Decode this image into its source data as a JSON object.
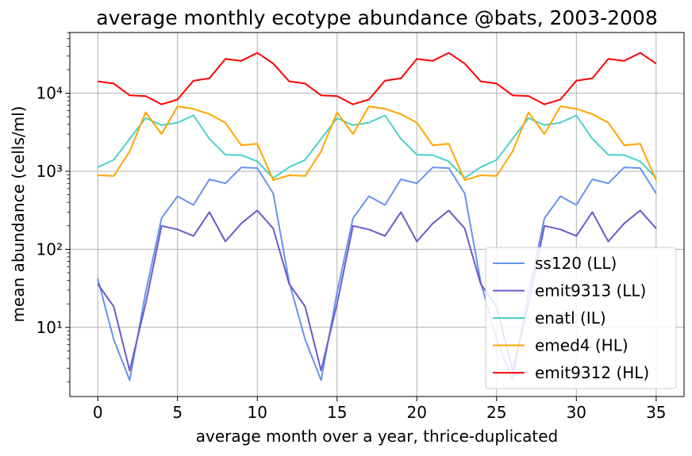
{
  "chart_data": {
    "type": "line",
    "title": "average monthly ecotype abundance @bats, 2003-2008",
    "xlabel": "average month over a year, thrice-duplicated",
    "ylabel": "mean abundance (cells/ml)",
    "yscale": "log",
    "xlim": [
      -1.75,
      36.75
    ],
    "ylim": [
      1.3,
      60000
    ],
    "xticks": [
      0,
      5,
      10,
      15,
      20,
      25,
      30,
      35
    ],
    "xtick_labels": [
      "0",
      "5",
      "10",
      "15",
      "20",
      "25",
      "30",
      "35"
    ],
    "yticks": [
      10,
      100,
      1000,
      10000
    ],
    "ytick_labels": [
      "10¹",
      "10²",
      "10³",
      "10⁴"
    ],
    "grid": true,
    "legend_position": "lower-right",
    "x": [
      0,
      1,
      2,
      3,
      4,
      5,
      6,
      7,
      8,
      9,
      10,
      11,
      12,
      13,
      14,
      15,
      16,
      17,
      18,
      19,
      20,
      21,
      22,
      23,
      24,
      25,
      26,
      27,
      28,
      29,
      30,
      31,
      32,
      33,
      34,
      35
    ],
    "series": [
      {
        "name": "ss120 (LL)",
        "color": "#6495ed",
        "values": [
          42,
          7,
          2.1,
          28,
          250,
          480,
          370,
          790,
          700,
          1120,
          1100,
          520,
          38,
          7,
          2.1,
          28,
          250,
          480,
          370,
          790,
          700,
          1120,
          1100,
          520,
          38,
          7,
          2.1,
          28,
          250,
          480,
          370,
          790,
          700,
          1120,
          1100,
          520
        ]
      },
      {
        "name": "emit9313 (LL)",
        "color": "#6a5acd",
        "values": [
          36,
          18.5,
          2.8,
          20,
          200,
          180,
          148,
          300,
          126,
          215,
          315,
          185,
          36,
          18.5,
          2.8,
          20,
          200,
          180,
          148,
          300,
          126,
          215,
          315,
          185,
          36,
          18.5,
          2.8,
          20,
          200,
          180,
          148,
          300,
          126,
          215,
          315,
          185
        ]
      },
      {
        "name": "enatl (IL)",
        "color": "#48d1cc",
        "values": [
          1130,
          1400,
          2600,
          4800,
          3900,
          4200,
          5200,
          2600,
          1630,
          1610,
          1340,
          820,
          1130,
          1400,
          2600,
          4800,
          3900,
          4200,
          5200,
          2600,
          1630,
          1610,
          1340,
          820,
          1130,
          1400,
          2600,
          4800,
          3900,
          4200,
          5200,
          2600,
          1630,
          1610,
          1340,
          820
        ]
      },
      {
        "name": "emed4 (HL)",
        "color": "#ffa500",
        "values": [
          890,
          870,
          1800,
          5700,
          3000,
          6800,
          6300,
          5400,
          4200,
          2150,
          2250,
          770,
          890,
          870,
          1800,
          5700,
          3000,
          6800,
          6300,
          5400,
          4200,
          2150,
          2250,
          770,
          890,
          870,
          1800,
          5700,
          3000,
          6800,
          6300,
          5400,
          4200,
          2150,
          2250,
          770
        ]
      },
      {
        "name": "emit9312 (HL)",
        "color": "#ff0000",
        "values": [
          14200,
          13300,
          9400,
          9200,
          7200,
          8300,
          14500,
          15500,
          27500,
          26000,
          33000,
          24000,
          14200,
          13300,
          9400,
          9200,
          7200,
          8300,
          14500,
          15500,
          27500,
          26000,
          33000,
          24000,
          14200,
          13300,
          9400,
          9200,
          7200,
          8300,
          14500,
          15500,
          27500,
          26000,
          33000,
          24000
        ]
      }
    ]
  }
}
